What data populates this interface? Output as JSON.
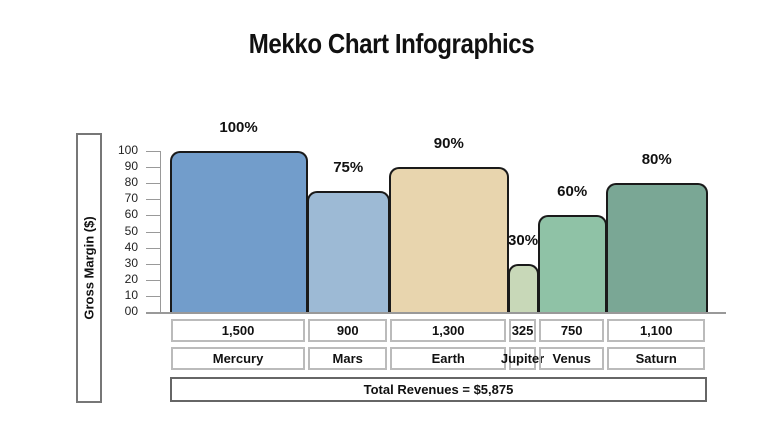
{
  "title": "Mekko Chart Infographics",
  "chart_data": {
    "type": "bar",
    "subtype": "mekko",
    "title": "Mekko Chart Infographics",
    "ylabel": "Gross Margin ($)",
    "xlabel": "",
    "ylim": [
      0,
      100
    ],
    "yticks": [
      "00",
      "10",
      "20",
      "30",
      "40",
      "50",
      "60",
      "70",
      "80",
      "90",
      "100"
    ],
    "categories": [
      "Mercury",
      "Mars",
      "Earth",
      "Jupiter",
      "Venus",
      "Saturn"
    ],
    "revenues": [
      1500,
      900,
      1300,
      325,
      750,
      1100
    ],
    "revenue_labels": [
      "1,500",
      "900",
      "1,300",
      "325",
      "750",
      "1,100"
    ],
    "values": [
      100,
      75,
      90,
      30,
      60,
      80
    ],
    "value_labels": [
      "100%",
      "75%",
      "90%",
      "30%",
      "60%",
      "80%"
    ],
    "colors": [
      "#729dcb",
      "#9dbad5",
      "#e8d5ae",
      "#c8d8b8",
      "#8fc2a6",
      "#7aa795"
    ],
    "total_label": "Total Revenues = $5,875",
    "grid": false
  }
}
